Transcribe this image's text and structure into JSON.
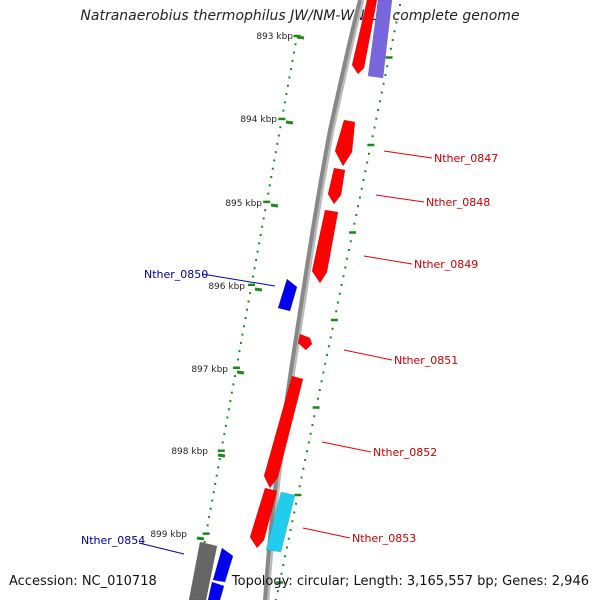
{
  "title": "Natranaerobius thermophilus JW/NM-WN-LF, complete genome",
  "footer": {
    "accession": "Accession: NC_010718",
    "summary": "Topology: circular; Length: 3,165,557 bp; Genes: 2,946"
  },
  "colors": {
    "forward_cds": "#ff0000",
    "reverse_cds": "#0000ee",
    "cyan_feature": "#22ccee",
    "purple_feature": "#7766dd",
    "gray_feature": "#666666",
    "backbone": "#888888",
    "ticks": "#1a8a1a",
    "forward_label": "#cc0000",
    "reverse_label": "#000099"
  },
  "position_labels": [
    "893 kbp",
    "894 kbp",
    "895 kbp",
    "896 kbp",
    "897 kbp",
    "898 kbp",
    "899 kbp"
  ],
  "gene_labels": [
    {
      "id": "g0847",
      "text": "Nther_0847",
      "strand": "forward"
    },
    {
      "id": "g0848",
      "text": "Nther_0848",
      "strand": "forward"
    },
    {
      "id": "g0849",
      "text": "Nther_0849",
      "strand": "forward"
    },
    {
      "id": "g0850",
      "text": "Nther_0850",
      "strand": "reverse"
    },
    {
      "id": "g0851",
      "text": "Nther_0851",
      "strand": "forward"
    },
    {
      "id": "g0852",
      "text": "Nther_0852",
      "strand": "forward"
    },
    {
      "id": "g0853",
      "text": "Nther_0853",
      "strand": "forward"
    },
    {
      "id": "g0854",
      "text": "Nther_0854",
      "strand": "reverse"
    }
  ]
}
